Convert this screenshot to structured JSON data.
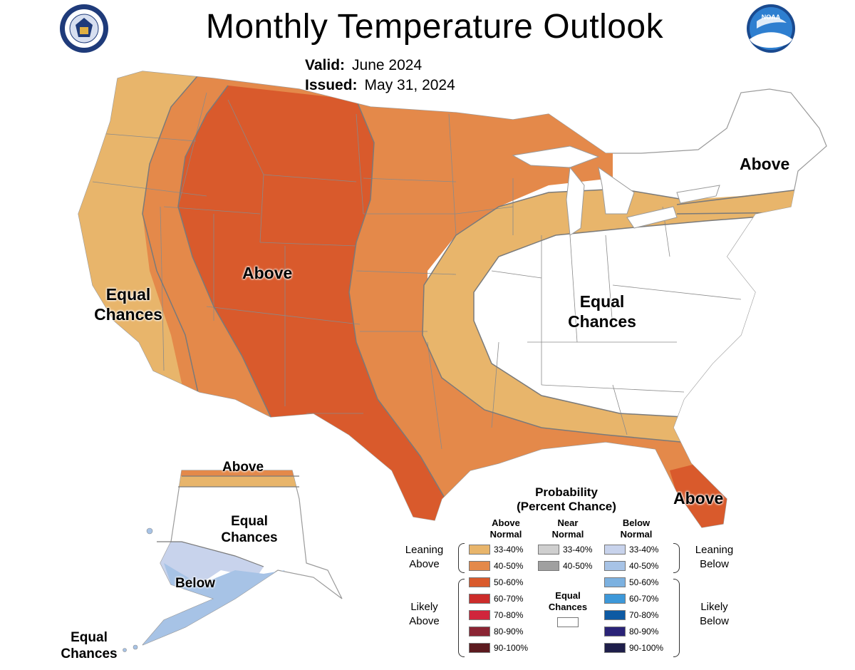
{
  "header": {
    "title": "Monthly Temperature Outlook",
    "valid_label": "Valid:",
    "valid_value": "June 2024",
    "issued_label": "Issued:",
    "issued_value": "May 31, 2024"
  },
  "logos": {
    "left": "department-of-commerce-seal-icon",
    "right": "noaa-logo-icon"
  },
  "colors": {
    "above_33_40": "#e8b56b",
    "above_40_50": "#e4894a",
    "above_50_60": "#d95a2c",
    "above_60_70": "#cc2c2a",
    "above_70_80": "#d0253c",
    "above_80_90": "#8a2433",
    "above_90_100": "#5c1a1f",
    "near_33_40": "#cfcfcf",
    "near_40_50": "#a0a0a0",
    "below_33_40": "#c8d3ec",
    "below_40_50": "#a7c3e6",
    "below_50_60": "#7cb1e0",
    "below_60_70": "#3d98d9",
    "below_70_80": "#0d5aa3",
    "below_80_90": "#2a2377",
    "below_90_100": "#1e1e4a",
    "equal": "#ffffff",
    "border": "#7a7a7a"
  },
  "map_labels": {
    "west_above": "Above",
    "west_equal_1": "Equal",
    "west_equal_2": "Chances",
    "east_equal_1": "Equal",
    "east_equal_2": "Chances",
    "northeast_above": "Above",
    "florida_above": "Above",
    "alaska_north_above": "Above",
    "alaska_equal_1": "Equal",
    "alaska_equal_2": "Chances",
    "alaska_below": "Below",
    "aleutian_equal_1": "Equal",
    "aleutian_equal_2": "Chances"
  },
  "legend": {
    "title_1": "Probability",
    "title_2": "(Percent Chance)",
    "above_head_1": "Above",
    "above_head_2": "Normal",
    "near_head_1": "Near",
    "near_head_2": "Normal",
    "below_head_1": "Below",
    "below_head_2": "Normal",
    "leaning_above_1": "Leaning",
    "leaning_above_2": "Above",
    "likely_above_1": "Likely",
    "likely_above_2": "Above",
    "leaning_below_1": "Leaning",
    "leaning_below_2": "Below",
    "likely_below_1": "Likely",
    "likely_below_2": "Below",
    "equal_1": "Equal",
    "equal_2": "Chances",
    "above_rows": [
      "33-40%",
      "40-50%",
      "50-60%",
      "60-70%",
      "70-80%",
      "80-90%",
      "90-100%"
    ],
    "near_rows": [
      "33-40%",
      "40-50%"
    ],
    "below_rows": [
      "33-40%",
      "40-50%",
      "50-60%",
      "60-70%",
      "70-80%",
      "80-90%",
      "90-100%"
    ]
  }
}
